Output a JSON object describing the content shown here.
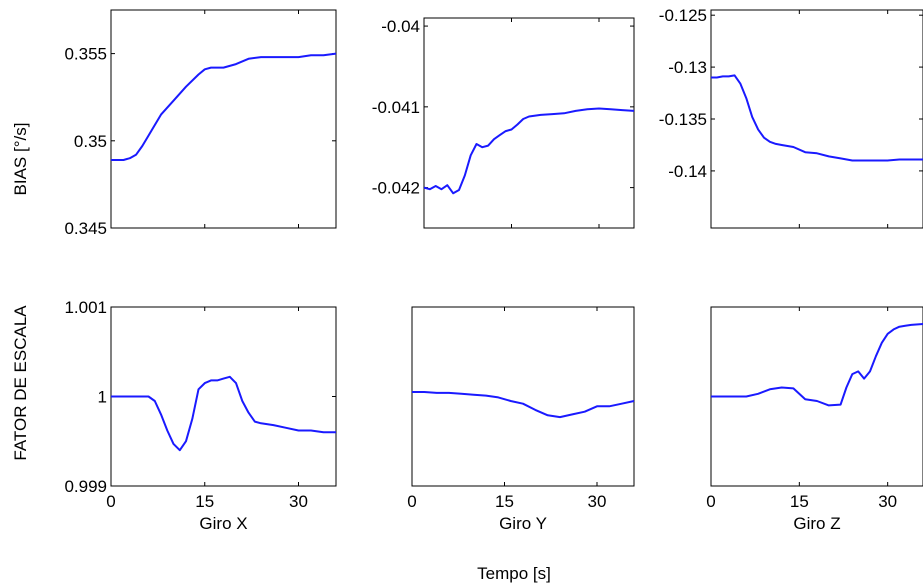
{
  "figure": {
    "common_xlabel": "Tempo [s]",
    "row_ylabels": [
      "BIAS [°/s]",
      "FATOR DE ESCALA"
    ],
    "line_color": "#1a1aff"
  },
  "chart_data": [
    {
      "type": "line",
      "row": 0,
      "col": 0,
      "xlabel": "",
      "ylabel": "BIAS [°/s]",
      "xlim": [
        0,
        36
      ],
      "ylim": [
        0.345,
        0.3575
      ],
      "xticks": [
        0,
        15,
        30
      ],
      "xtick_labels": [
        "",
        "",
        ""
      ],
      "yticks": [
        0.345,
        0.35,
        0.355
      ],
      "ytick_labels": [
        "0.345",
        "0.35",
        "0.355"
      ],
      "series": [
        {
          "x": [
            0,
            1,
            2,
            3,
            4,
            5,
            6,
            8,
            10,
            12,
            14,
            15,
            16,
            18,
            20,
            22,
            24,
            26,
            28,
            30,
            32,
            34,
            36
          ],
          "y": [
            0.3489,
            0.3489,
            0.3489,
            0.349,
            0.3492,
            0.3497,
            0.3503,
            0.3515,
            0.3523,
            0.3531,
            0.3538,
            0.3541,
            0.3542,
            0.3542,
            0.3544,
            0.3547,
            0.3548,
            0.3548,
            0.3548,
            0.3548,
            0.3549,
            0.3549,
            0.355
          ]
        }
      ]
    },
    {
      "type": "line",
      "row": 0,
      "col": 1,
      "xlabel": "",
      "ylabel": "",
      "xlim": [
        0,
        36
      ],
      "ylim": [
        -0.0425,
        -0.0399
      ],
      "xticks": [
        0,
        15,
        30
      ],
      "xtick_labels": [
        "",
        "",
        ""
      ],
      "yticks": [
        -0.042,
        -0.041,
        -0.04
      ],
      "ytick_labels": [
        "-0.042",
        "-0.041",
        "-0.04"
      ],
      "series": [
        {
          "x": [
            0,
            1,
            2,
            3,
            4,
            5,
            6,
            7,
            8,
            9,
            10,
            11,
            12,
            13,
            14,
            15,
            16,
            17,
            18,
            20,
            22,
            24,
            26,
            28,
            30,
            32,
            34,
            36
          ],
          "y": [
            -0.042,
            -0.04202,
            -0.04198,
            -0.04202,
            -0.04197,
            -0.04207,
            -0.04203,
            -0.04185,
            -0.0416,
            -0.04146,
            -0.0415,
            -0.04148,
            -0.0414,
            -0.04135,
            -0.0413,
            -0.04128,
            -0.04122,
            -0.04115,
            -0.04112,
            -0.0411,
            -0.04109,
            -0.04108,
            -0.04105,
            -0.04103,
            -0.04102,
            -0.04103,
            -0.04104,
            -0.04105
          ]
        }
      ]
    },
    {
      "type": "line",
      "row": 0,
      "col": 2,
      "xlabel": "",
      "ylabel": "",
      "xlim": [
        0,
        36
      ],
      "ylim": [
        -0.1455,
        -0.1245
      ],
      "xticks": [
        0,
        15,
        30
      ],
      "xtick_labels": [
        "",
        "",
        ""
      ],
      "yticks": [
        -0.14,
        -0.135,
        -0.13,
        -0.125
      ],
      "ytick_labels": [
        "-0.14",
        "-0.135",
        "-0.13",
        "-0.125"
      ],
      "series": [
        {
          "x": [
            0,
            1,
            2,
            3,
            4,
            5,
            6,
            7,
            8,
            9,
            10,
            11,
            12,
            14,
            16,
            18,
            20,
            22,
            24,
            26,
            28,
            30,
            32,
            34,
            36
          ],
          "y": [
            -0.131,
            -0.131,
            -0.1309,
            -0.1309,
            -0.1308,
            -0.1316,
            -0.133,
            -0.1348,
            -0.136,
            -0.1368,
            -0.1372,
            -0.1374,
            -0.1375,
            -0.1377,
            -0.1382,
            -0.1383,
            -0.1386,
            -0.1388,
            -0.139,
            -0.139,
            -0.139,
            -0.139,
            -0.1389,
            -0.1389,
            -0.1389
          ]
        }
      ]
    },
    {
      "type": "line",
      "row": 1,
      "col": 0,
      "xlabel": "Giro X",
      "ylabel": "FATOR DE ESCALA",
      "xlim": [
        0,
        36
      ],
      "ylim": [
        0.999,
        1.001
      ],
      "xticks": [
        0,
        15,
        30
      ],
      "xtick_labels": [
        "0",
        "15",
        "30"
      ],
      "yticks": [
        0.999,
        1,
        1.001
      ],
      "ytick_labels": [
        "0.999",
        "1",
        "1.001"
      ],
      "series": [
        {
          "x": [
            0,
            2,
            4,
            6,
            7,
            8,
            9,
            10,
            11,
            12,
            13,
            14,
            15,
            16,
            17,
            18,
            19,
            20,
            21,
            22,
            23,
            24,
            26,
            28,
            30,
            32,
            34,
            36
          ],
          "y": [
            1.0,
            1.0,
            1.0,
            1.0,
            0.99995,
            0.9998,
            0.99962,
            0.99947,
            0.9994,
            0.9995,
            0.99975,
            1.00008,
            1.00015,
            1.00018,
            1.00018,
            1.0002,
            1.00022,
            1.00015,
            0.99995,
            0.99982,
            0.99972,
            0.9997,
            0.99968,
            0.99965,
            0.99962,
            0.99962,
            0.9996,
            0.9996
          ]
        }
      ]
    },
    {
      "type": "line",
      "row": 1,
      "col": 1,
      "xlabel": "Giro Y",
      "ylabel": "",
      "xlim": [
        0,
        36
      ],
      "ylim": [
        0.999,
        1.001
      ],
      "xticks": [
        0,
        15,
        30
      ],
      "xtick_labels": [
        "0",
        "15",
        "30"
      ],
      "yticks": [],
      "ytick_labels": [],
      "series": [
        {
          "x": [
            0,
            2,
            4,
            6,
            8,
            10,
            12,
            14,
            16,
            18,
            20,
            22,
            24,
            26,
            28,
            30,
            32,
            34,
            36
          ],
          "y": [
            1.00005,
            1.00005,
            1.00004,
            1.00004,
            1.00003,
            1.00002,
            1.00001,
            0.99999,
            0.99995,
            0.99992,
            0.99985,
            0.99979,
            0.99977,
            0.9998,
            0.99983,
            0.99989,
            0.99989,
            0.99992,
            0.99995
          ]
        }
      ]
    },
    {
      "type": "line",
      "row": 1,
      "col": 2,
      "xlabel": "Giro Z",
      "ylabel": "",
      "xlim": [
        0,
        36
      ],
      "ylim": [
        0.999,
        1.001
      ],
      "xticks": [
        0,
        15,
        30
      ],
      "xtick_labels": [
        "0",
        "15",
        "30"
      ],
      "yticks": [],
      "ytick_labels": [],
      "series": [
        {
          "x": [
            0,
            2,
            4,
            6,
            8,
            10,
            12,
            14,
            16,
            18,
            20,
            22,
            23,
            24,
            25,
            26,
            27,
            28,
            29,
            30,
            31,
            32,
            33,
            34,
            36
          ],
          "y": [
            1.0,
            1.0,
            1.0,
            1.0,
            1.00003,
            1.00008,
            1.0001,
            1.00009,
            0.99997,
            0.99995,
            0.9999,
            0.99991,
            1.0001,
            1.00025,
            1.00028,
            1.0002,
            1.00028,
            1.00045,
            1.0006,
            1.0007,
            1.00075,
            1.00078,
            1.00079,
            1.0008,
            1.00081
          ]
        }
      ]
    }
  ]
}
